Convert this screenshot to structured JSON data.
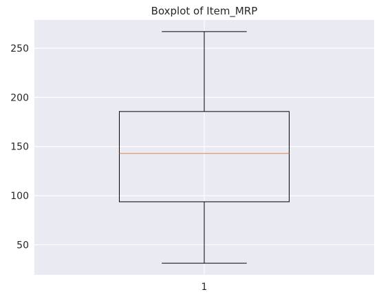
{
  "chart_data": {
    "type": "boxplot",
    "title": "Boxplot of Item_MRP",
    "xlabel": "",
    "ylabel": "",
    "categories": [
      "1"
    ],
    "boxes": [
      {
        "category": "1",
        "whisker_low": 31.3,
        "q1": 93.8,
        "median": 143.0,
        "q3": 185.6,
        "whisker_high": 266.9
      }
    ],
    "yticks": [
      50,
      100,
      150,
      200,
      250
    ],
    "ylim": [
      19.5,
      278.7
    ],
    "xlim": [
      0.5,
      1.5
    ],
    "grid": true,
    "colors": {
      "background": "#EAEAF2",
      "grid": "#FFFFFF",
      "box": "#000000",
      "median": "#DD8452",
      "text": "#262626"
    }
  }
}
